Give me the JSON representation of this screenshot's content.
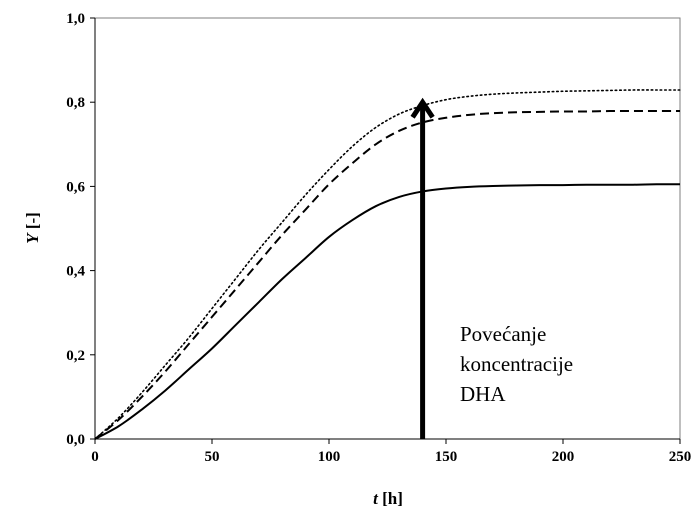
{
  "chart_data": {
    "type": "line",
    "xlabel_var": "t",
    "xlabel_unit": " [h]",
    "ylabel_var": "Y",
    "ylabel_unit": " [-]",
    "xlim": [
      0,
      250
    ],
    "ylim": [
      0,
      1
    ],
    "x_ticks": [
      "0",
      "50",
      "100",
      "150",
      "200",
      "250"
    ],
    "y_ticks": [
      "0,0",
      "0,2",
      "0,4",
      "0,6",
      "0,8",
      "1,0"
    ],
    "grid": false,
    "legend": "none",
    "series": [
      {
        "style": "solid",
        "x": [
          0,
          10,
          20,
          30,
          40,
          50,
          60,
          70,
          80,
          90,
          100,
          110,
          120,
          130,
          140,
          150,
          160,
          170,
          180,
          190,
          200,
          210,
          220,
          230,
          240,
          250
        ],
        "y": [
          0,
          0.03,
          0.07,
          0.115,
          0.165,
          0.215,
          0.27,
          0.325,
          0.38,
          0.43,
          0.48,
          0.52,
          0.553,
          0.575,
          0.588,
          0.595,
          0.599,
          0.601,
          0.602,
          0.603,
          0.603,
          0.604,
          0.604,
          0.604,
          0.605,
          0.605
        ]
      },
      {
        "style": "dashed",
        "x": [
          0,
          10,
          20,
          30,
          40,
          50,
          60,
          70,
          80,
          90,
          100,
          110,
          120,
          130,
          140,
          150,
          160,
          170,
          180,
          190,
          200,
          210,
          220,
          230,
          240,
          250
        ],
        "y": [
          0,
          0.045,
          0.1,
          0.16,
          0.225,
          0.29,
          0.355,
          0.42,
          0.485,
          0.545,
          0.605,
          0.655,
          0.7,
          0.732,
          0.752,
          0.763,
          0.77,
          0.774,
          0.776,
          0.777,
          0.778,
          0.778,
          0.779,
          0.779,
          0.779,
          0.779
        ]
      },
      {
        "style": "dotted",
        "x": [
          0,
          10,
          20,
          30,
          40,
          50,
          60,
          70,
          80,
          90,
          100,
          110,
          120,
          130,
          140,
          150,
          160,
          170,
          180,
          190,
          200,
          210,
          220,
          230,
          240,
          250
        ],
        "y": [
          0,
          0.05,
          0.11,
          0.175,
          0.24,
          0.31,
          0.38,
          0.45,
          0.515,
          0.58,
          0.64,
          0.695,
          0.74,
          0.772,
          0.792,
          0.806,
          0.814,
          0.819,
          0.822,
          0.824,
          0.826,
          0.827,
          0.828,
          0.829,
          0.829,
          0.829
        ]
      }
    ],
    "arrow": {
      "x": 140,
      "y_from": 0,
      "y_to": 0.8
    },
    "annotation_lines": [
      "Povećanje",
      "koncentracije",
      "DHA"
    ]
  }
}
